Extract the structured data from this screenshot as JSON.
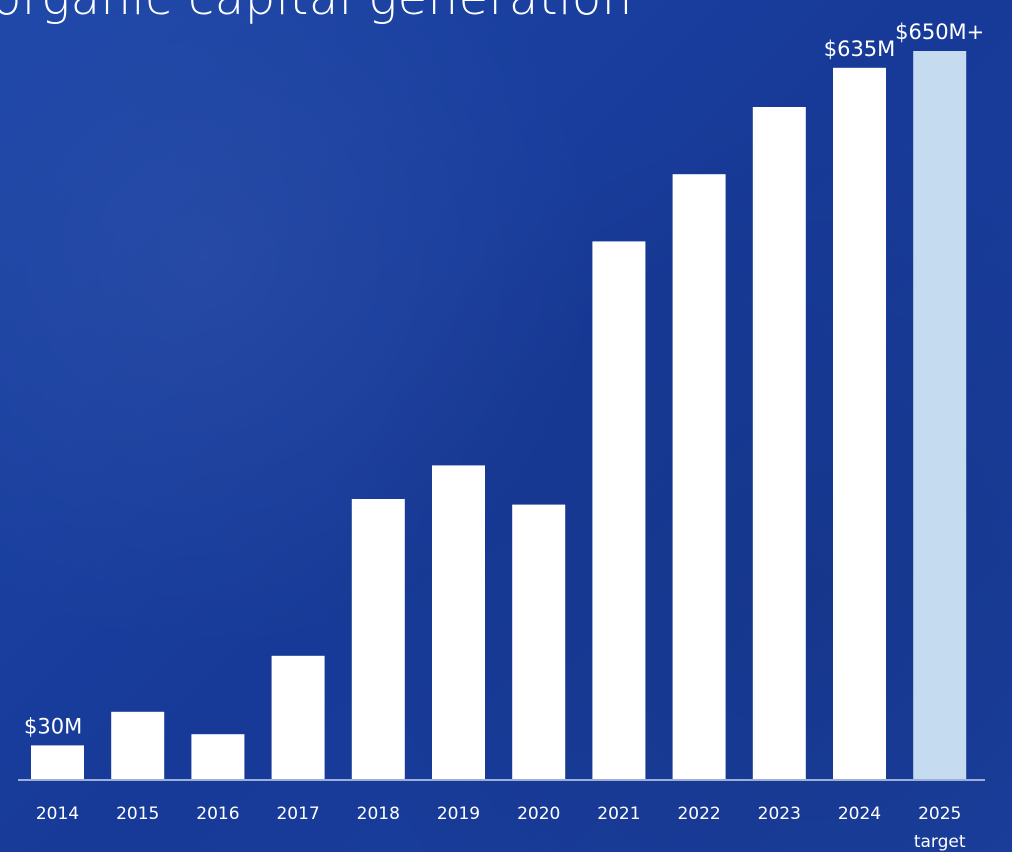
{
  "header": {
    "title": "organic capital generation"
  },
  "chart_data": {
    "type": "bar",
    "categories": [
      "2014",
      "2015",
      "2016",
      "2017",
      "2018",
      "2019",
      "2020",
      "2021",
      "2022",
      "2023",
      "2024",
      "2025"
    ],
    "category_sublabels": [
      "",
      "",
      "",
      "",
      "",
      "",
      "",
      "",
      "",
      "",
      "",
      "target"
    ],
    "values": [
      30,
      60,
      40,
      110,
      250,
      280,
      245,
      480,
      540,
      600,
      635,
      650
    ],
    "data_labels": [
      "$30M",
      "",
      "",
      "",
      "",
      "",
      "",
      "",
      "",
      "",
      "$635M",
      "$650M+"
    ],
    "highlight_index": 11,
    "ylim": [
      0,
      650
    ],
    "grid": false,
    "colors": {
      "bar": "#ffffff",
      "highlight": "#c5dcf0",
      "axis": "#c8d6ee",
      "background": "#1a3f9e"
    }
  }
}
